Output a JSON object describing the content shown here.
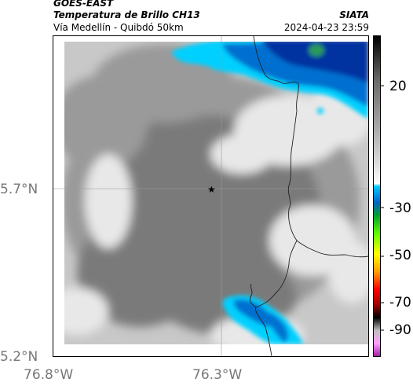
{
  "header": {
    "satellite": "GOES-EAST",
    "variable": "Temperatura de Brillo CH13",
    "location": "Vía Medellín - Quibdó 50km",
    "organization": "SIATA",
    "timestamp": "2024-04-23 23:59"
  },
  "axes": {
    "lat_ticks": [
      "5.7°N",
      "5.2°N"
    ],
    "lon_ticks": [
      "76.8°W",
      "76.3°W"
    ]
  },
  "colorbar": {
    "tick_labels": [
      "20",
      "-30",
      "-50",
      "-70",
      "-90"
    ],
    "colors": [
      "#000000",
      "#2e2e2e",
      "#6b6b6b",
      "#a6a6a6",
      "#d4d4d4",
      "#f2f2f2",
      "#ffffff",
      "#00c8ff",
      "#0064c8",
      "#00a030",
      "#64ff00",
      "#ffff00",
      "#ff9600",
      "#ff0000",
      "#a00000",
      "#000000",
      "#bfbfbf",
      "#ffa0ff",
      "#a020a0"
    ]
  },
  "map": {
    "marker": "star-icon",
    "palette": {
      "gray_dark": "#7a7a7a",
      "gray_mid": "#9a9a9a",
      "gray_light": "#c8c8c8",
      "cloud_white": "#e8e8e8",
      "cyan": "#00d0ff",
      "blue": "#0070d0",
      "deep_blue": "#0030a0",
      "green": "#2a9a5a"
    }
  }
}
